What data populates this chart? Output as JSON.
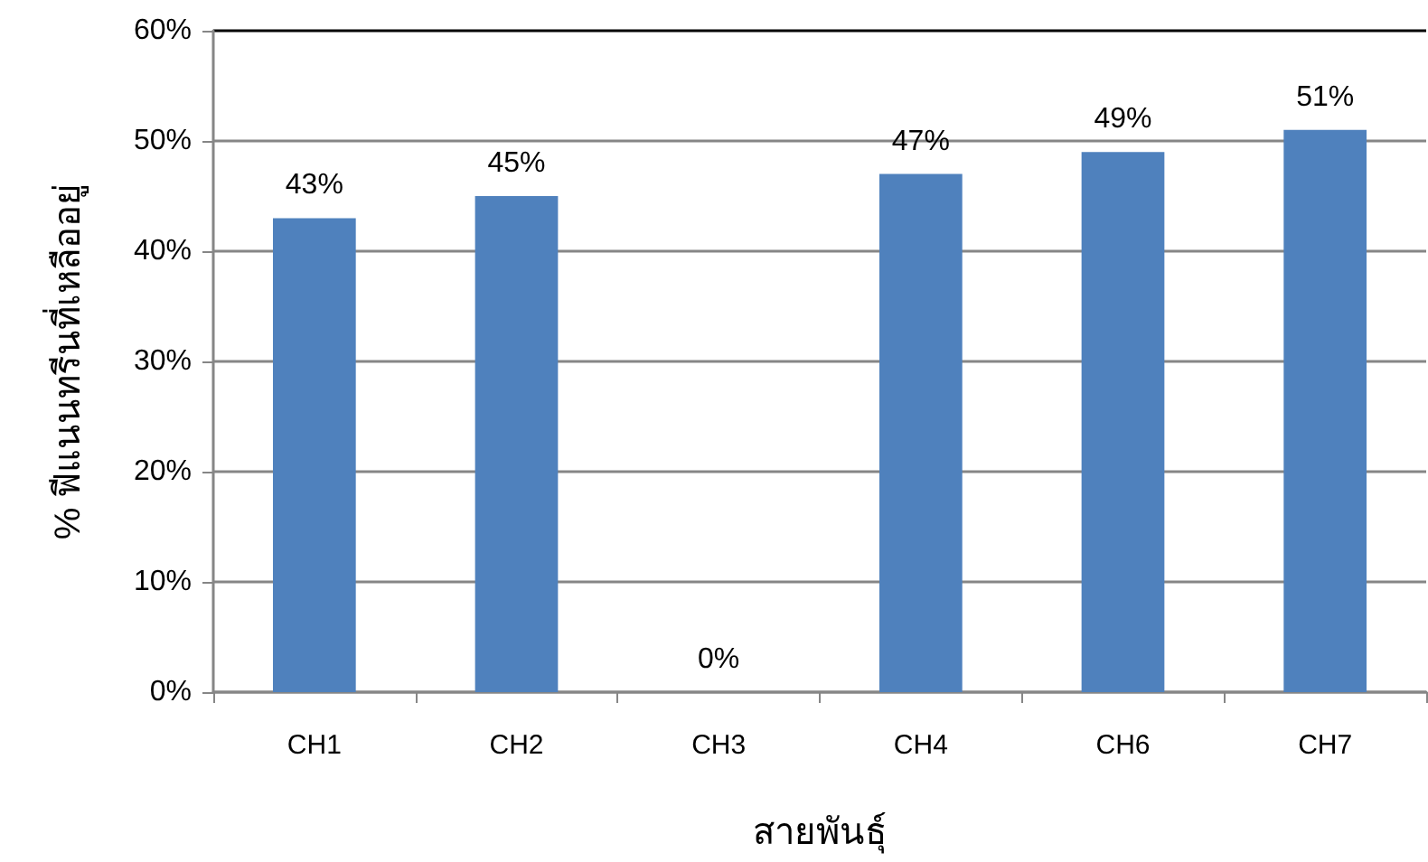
{
  "chart_data": {
    "type": "bar",
    "categories": [
      "CH1",
      "CH2",
      "CH3",
      "CH4",
      "CH6",
      "CH7"
    ],
    "values": [
      43,
      45,
      0,
      47,
      49,
      51
    ],
    "color": "#4f81bd",
    "value_labels": [
      "43%",
      "45%",
      "0%",
      "47%",
      "49%",
      "51%"
    ],
    "xlabel": "สายพันธุ์",
    "ylabel": "% ฟีแนนทรีนที่เหลืออยู่",
    "ylim": [
      0,
      60
    ],
    "yticks": [
      {
        "value": 0,
        "label": "0%"
      },
      {
        "value": 10,
        "label": "10%"
      },
      {
        "value": 20,
        "label": "20%"
      },
      {
        "value": 30,
        "label": "30%"
      },
      {
        "value": 40,
        "label": "40%"
      },
      {
        "value": 50,
        "label": "50%"
      },
      {
        "value": 60,
        "label": "60%"
      }
    ],
    "grid": "y"
  }
}
